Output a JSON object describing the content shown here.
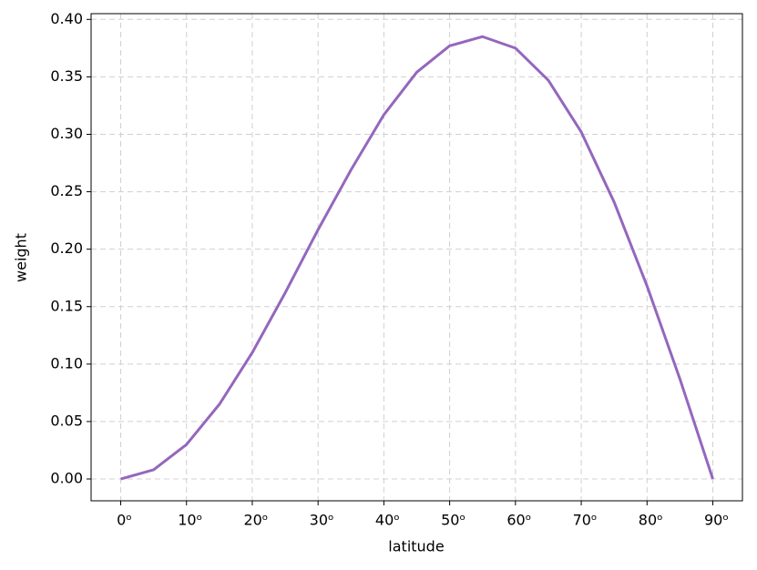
{
  "chart_data": {
    "type": "line",
    "xlabel": "latitude",
    "ylabel": "weight",
    "x": [
      0,
      5,
      10,
      15,
      20,
      25,
      30,
      35,
      40,
      45,
      50,
      55,
      60,
      65,
      70,
      75,
      80,
      85,
      90
    ],
    "series": [
      {
        "color": "#9467bd",
        "values": [
          0,
          0.008,
          0.03,
          0.065,
          0.11,
          0.162,
          0.217,
          0.269,
          0.317,
          0.354,
          0.377,
          0.385,
          0.375,
          0.347,
          0.302,
          0.241,
          0.168,
          0.087,
          0
        ]
      }
    ],
    "xlim": [
      -4.5,
      94.5
    ],
    "ylim": [
      -0.019,
      0.405
    ],
    "xticks": [
      {
        "value": 0,
        "label": "0ᵒ"
      },
      {
        "value": 10,
        "label": "10ᵒ"
      },
      {
        "value": 20,
        "label": "20ᵒ"
      },
      {
        "value": 30,
        "label": "30ᵒ"
      },
      {
        "value": 40,
        "label": "40ᵒ"
      },
      {
        "value": 50,
        "label": "50ᵒ"
      },
      {
        "value": 60,
        "label": "60ᵒ"
      },
      {
        "value": 70,
        "label": "70ᵒ"
      },
      {
        "value": 80,
        "label": "80ᵒ"
      },
      {
        "value": 90,
        "label": "90ᵒ"
      }
    ],
    "yticks": [
      {
        "value": 0,
        "label": "0.00"
      },
      {
        "value": 0.05,
        "label": "0.05"
      },
      {
        "value": 0.1,
        "label": "0.10"
      },
      {
        "value": 0.15,
        "label": "0.15"
      },
      {
        "value": 0.2,
        "label": "0.20"
      },
      {
        "value": 0.25,
        "label": "0.25"
      },
      {
        "value": 0.3,
        "label": "0.30"
      },
      {
        "value": 0.35,
        "label": "0.35"
      },
      {
        "value": 0.4,
        "label": "0.40"
      }
    ],
    "grid": true
  }
}
